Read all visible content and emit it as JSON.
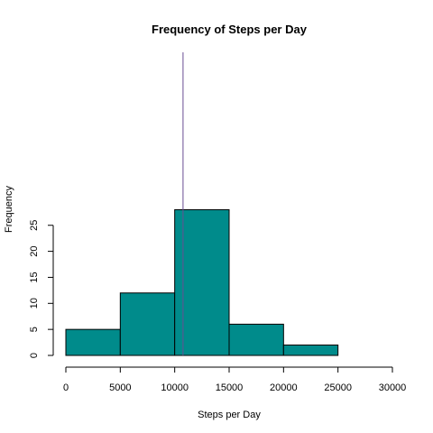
{
  "chart_data": {
    "type": "bar",
    "title": "Frequency of Steps per Day",
    "xlabel": "Steps per Day",
    "ylabel": "Frequency",
    "bins": [
      {
        "from": 0,
        "to": 5000,
        "value": 5
      },
      {
        "from": 5000,
        "to": 10000,
        "value": 12
      },
      {
        "from": 10000,
        "to": 15000,
        "value": 28
      },
      {
        "from": 15000,
        "to": 20000,
        "value": 6
      },
      {
        "from": 20000,
        "to": 25000,
        "value": 2
      },
      {
        "from": 25000,
        "to": 30000,
        "value": 0
      }
    ],
    "xlim": [
      0,
      30000
    ],
    "ylim": [
      0,
      28
    ],
    "xticks": [
      "0",
      "5000",
      "10000",
      "15000",
      "20000",
      "25000",
      "30000"
    ],
    "yticks": [
      "0",
      "5",
      "10",
      "15",
      "20",
      "25"
    ],
    "vline": 10766,
    "grid": false,
    "colors": {
      "bar_fill": "#008b8b",
      "vline": "#6a4c93"
    }
  }
}
